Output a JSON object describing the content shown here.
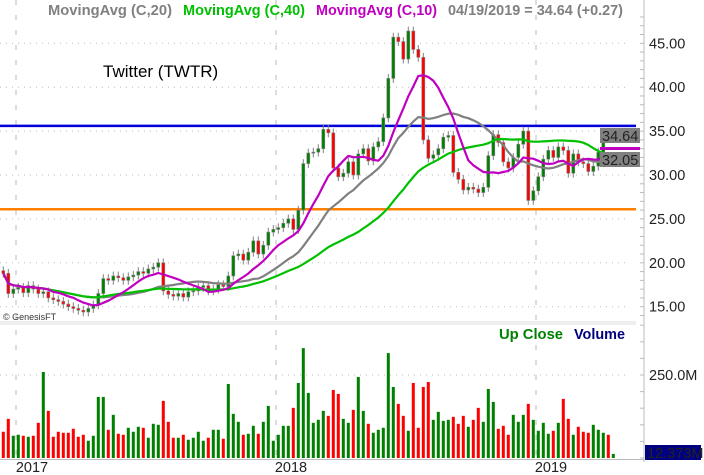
{
  "legend": {
    "ma20_label": "MovingAvg (C,20)",
    "ma40_label": "MovingAvg (C,40)",
    "ma10_label": "MovingAvg (C,10)",
    "quote": "04/19/2019 = 34.64 (+0.27)"
  },
  "title": "Twitter (TWTR)",
  "copyright": "© GenesisFT",
  "volume_legend": {
    "up_close": "Up Close",
    "volume": "Volume"
  },
  "colors": {
    "ma20": "#808080",
    "ma40": "#00c000",
    "ma10": "#c000c0",
    "up": "#008000",
    "down": "#ff0000",
    "resistance": "#0000dd",
    "support": "#ff8000",
    "volume_label_bg": "#000080"
  },
  "chart_data": {
    "type": "candlestick",
    "frequency": "weekly",
    "last_date": "04/19/2019",
    "x_tick_labels": [
      "2017",
      "2018",
      "2019"
    ],
    "y_tick_labels": [
      "45.00",
      "40.00",
      "35.00",
      "30.00",
      "25.00",
      "20.00",
      "15.00"
    ],
    "ylim": [
      13.5,
      49
    ],
    "horizontal_lines": [
      {
        "name": "resistance",
        "value": 35.6
      },
      {
        "name": "support",
        "value": 26.1
      }
    ],
    "last_price_label": "34.64",
    "ma_value_label": "32.05",
    "moving_averages": [
      20,
      40,
      10
    ],
    "closes": [
      18.8,
      16.5,
      17.0,
      17.2,
      16.6,
      17.4,
      17.0,
      16.5,
      16.7,
      16.0,
      15.8,
      15.6,
      15.3,
      15.0,
      14.8,
      14.6,
      14.4,
      14.8,
      15.2,
      16.5,
      18.2,
      18.0,
      18.5,
      18.3,
      18.0,
      18.4,
      18.6,
      19.0,
      18.8,
      19.3,
      19.5,
      20.0,
      16.8,
      16.4,
      16.2,
      16.5,
      16.1,
      16.7,
      16.8,
      17.2,
      17.4,
      16.8,
      17.0,
      17.5,
      17.3,
      18.5,
      20.8,
      21.0,
      20.3,
      21.2,
      22.5,
      21.0,
      22.0,
      23.5,
      23.8,
      24.0,
      24.5,
      25.0,
      23.8,
      26.0,
      31.3,
      32.5,
      32.6,
      33.0,
      35.2,
      34.8,
      30.8,
      29.8,
      30.2,
      31.5,
      30.0,
      32.4,
      33.0,
      31.6,
      33.2,
      33.8,
      36.5,
      41.0,
      45.7,
      45.2,
      43.2,
      46.4,
      44.3,
      43.4,
      34.0,
      31.9,
      32.3,
      33.0,
      34.3,
      34.5,
      30.3,
      29.5,
      28.3,
      28.6,
      28.4,
      28.0,
      28.6,
      32.2,
      34.6,
      33.7,
      31.5,
      30.8,
      32.0,
      33.5,
      35.0,
      27.1,
      28.2,
      29.8,
      31.8,
      32.8,
      32.0,
      33.2,
      32.8,
      30.2,
      32.4,
      31.5,
      31.3,
      30.4,
      31.0,
      32.6,
      34.6,
      34.37,
      34.64
    ],
    "volume": {
      "unit": "M",
      "tick_label": "250.0M",
      "tick_value": 250,
      "last_label": "12.373M",
      "values": [
        79,
        118,
        67,
        70,
        67,
        64,
        67,
        106,
        259,
        142,
        64,
        79,
        76,
        76,
        88,
        64,
        70,
        52,
        67,
        184,
        184,
        85,
        130,
        73,
        70,
        91,
        79,
        94,
        91,
        61,
        103,
        100,
        172,
        109,
        61,
        61,
        70,
        55,
        61,
        79,
        52,
        61,
        85,
        85,
        58,
        223,
        133,
        109,
        70,
        73,
        97,
        73,
        109,
        157,
        52,
        70,
        97,
        97,
        151,
        226,
        331,
        196,
        106,
        115,
        142,
        127,
        205,
        193,
        118,
        106,
        145,
        244,
        142,
        103,
        76,
        85,
        91,
        316,
        214,
        163,
        127,
        82,
        226,
        91,
        214,
        229,
        115,
        139,
        112,
        115,
        124,
        103,
        127,
        94,
        115,
        151,
        109,
        208,
        169,
        88,
        97,
        70,
        130,
        109,
        130,
        163,
        115,
        82,
        106,
        73,
        82,
        106,
        178,
        118,
        70,
        94,
        79,
        76,
        100,
        85,
        76,
        70,
        12.373
      ]
    }
  }
}
